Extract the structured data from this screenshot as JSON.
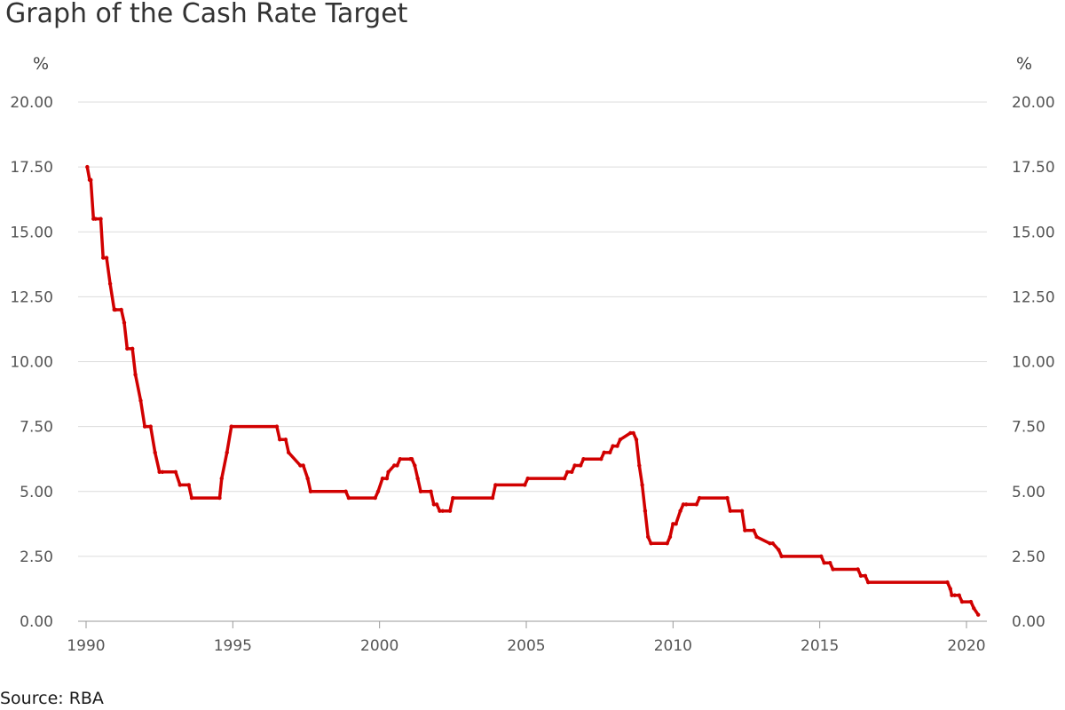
{
  "chart_data": {
    "type": "line",
    "title": "Graph of the Cash Rate Target",
    "source": "Source: RBA",
    "y_unit": "%",
    "xlim": [
      1990,
      2020.5
    ],
    "ylim": [
      0,
      20
    ],
    "x_ticks": [
      1990,
      1995,
      2000,
      2005,
      2010,
      2015,
      2020
    ],
    "x_tick_labels": [
      "1990",
      "1995",
      "2000",
      "2005",
      "2010",
      "2015",
      "2020"
    ],
    "y_ticks": [
      0,
      2.5,
      5,
      7.5,
      10,
      12.5,
      15,
      17.5,
      20
    ],
    "y_tick_labels": [
      "0.00",
      "2.50",
      "5.00",
      "7.50",
      "10.00",
      "12.50",
      "15.00",
      "17.50",
      "20.00"
    ],
    "grid": true,
    "colors": {
      "line": "#d10000"
    },
    "series": [
      {
        "x": [
          1990.04,
          1990.12,
          1990.16,
          1990.25,
          1990.32,
          1990.5,
          1990.58,
          1990.7,
          1990.82,
          1990.96,
          1991.0,
          1991.2,
          1991.3,
          1991.4,
          1991.58,
          1991.68,
          1991.86,
          1992.0,
          1992.2,
          1992.35,
          1992.5,
          1992.6,
          1993.05,
          1993.2,
          1993.5,
          1993.6,
          1994.55,
          1994.62,
          1994.8,
          1994.95,
          1996.5,
          1996.6,
          1996.8,
          1996.9,
          1997.3,
          1997.4,
          1997.55,
          1997.65,
          1998.85,
          1998.95,
          1999.85,
          1999.95,
          2000.1,
          2000.25,
          2000.3,
          2000.5,
          2000.6,
          2000.7,
          2001.05,
          2001.1,
          2001.2,
          2001.3,
          2001.4,
          2001.75,
          2001.85,
          2001.95,
          2002.05,
          2002.15,
          2002.4,
          2002.5,
          2003.85,
          2003.95,
          2004.95,
          2005.05,
          2006.3,
          2006.4,
          2006.55,
          2006.65,
          2006.85,
          2006.95,
          2007.55,
          2007.65,
          2007.85,
          2007.95,
          2008.1,
          2008.2,
          2008.55,
          2008.65,
          2008.75,
          2008.85,
          2008.95,
          2009.05,
          2009.15,
          2009.25,
          2009.8,
          2009.9,
          2010.0,
          2010.1,
          2010.25,
          2010.35,
          2010.45,
          2010.8,
          2010.9,
          2011.85,
          2011.95,
          2012.35,
          2012.45,
          2012.75,
          2012.85,
          2013.3,
          2013.4,
          2013.6,
          2013.7,
          2015.05,
          2015.15,
          2015.35,
          2015.45,
          2016.3,
          2016.4,
          2016.55,
          2016.65,
          2019.35,
          2019.45,
          2019.5,
          2019.6,
          2019.75,
          2019.85,
          2020.15,
          2020.25,
          2020.4
        ],
        "y": [
          17.5,
          17.0,
          17.0,
          15.5,
          15.5,
          15.5,
          14.0,
          14.0,
          13.0,
          12.0,
          12.0,
          12.0,
          11.5,
          10.5,
          10.5,
          9.5,
          8.5,
          7.5,
          7.5,
          6.5,
          5.75,
          5.75,
          5.75,
          5.25,
          5.25,
          4.75,
          4.75,
          5.5,
          6.5,
          7.5,
          7.5,
          7.0,
          7.0,
          6.5,
          6.0,
          6.0,
          5.5,
          5.0,
          5.0,
          4.75,
          4.75,
          5.0,
          5.5,
          5.5,
          5.75,
          6.0,
          6.0,
          6.25,
          6.25,
          6.25,
          6.0,
          5.5,
          5.0,
          5.0,
          4.5,
          4.5,
          4.25,
          4.25,
          4.25,
          4.75,
          4.75,
          5.25,
          5.25,
          5.5,
          5.5,
          5.75,
          5.75,
          6.0,
          6.0,
          6.25,
          6.25,
          6.5,
          6.5,
          6.75,
          6.75,
          7.0,
          7.25,
          7.25,
          7.0,
          6.0,
          5.25,
          4.25,
          3.25,
          3.0,
          3.0,
          3.25,
          3.75,
          3.75,
          4.25,
          4.5,
          4.5,
          4.5,
          4.75,
          4.75,
          4.25,
          4.25,
          3.5,
          3.5,
          3.25,
          3.0,
          3.0,
          2.75,
          2.5,
          2.5,
          2.25,
          2.25,
          2.0,
          2.0,
          1.75,
          1.75,
          1.5,
          1.5,
          1.25,
          1.0,
          1.0,
          1.0,
          0.75,
          0.75,
          0.5,
          0.25
        ]
      }
    ]
  }
}
